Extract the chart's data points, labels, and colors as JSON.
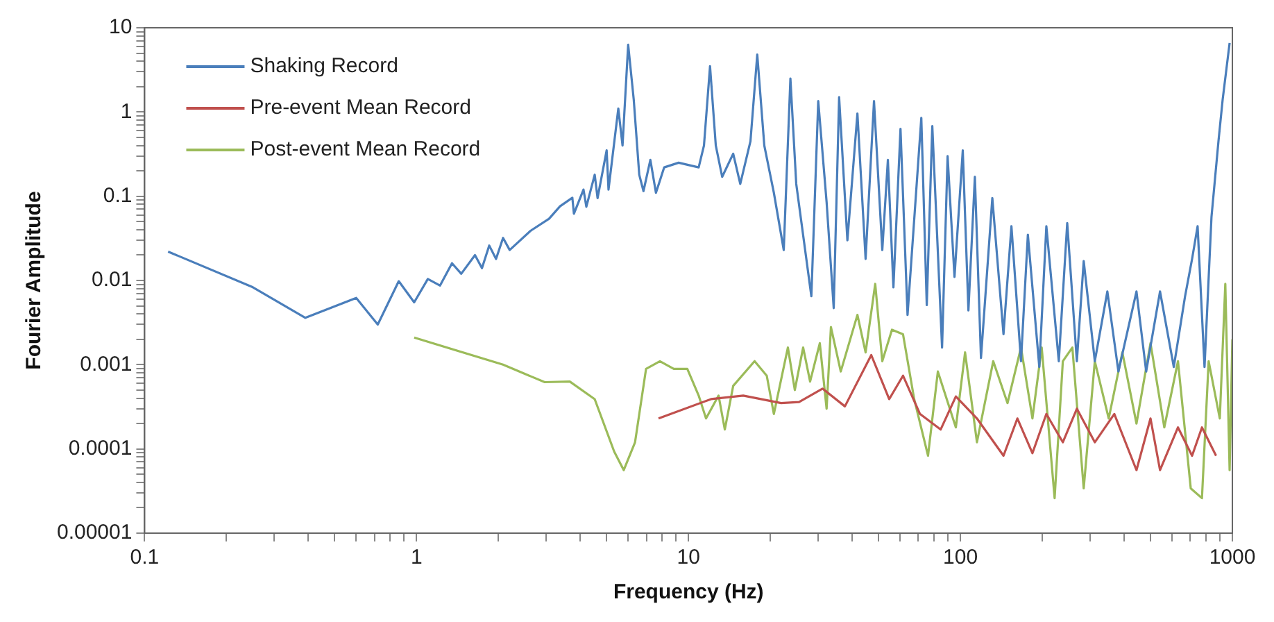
{
  "chart_data": {
    "type": "line",
    "xlabel": "Frequency (Hz)",
    "ylabel": "Fourier Amplitude",
    "log": "xy",
    "legend": "top left",
    "marker": "none",
    "line_style": "solid",
    "xlim": [
      0.1,
      1000
    ],
    "ylim": [
      1e-05,
      10
    ],
    "xticks": [
      0.1,
      {
        "value": 0.2,
        "label": null
      },
      {
        "value": 0.3,
        "label": null
      },
      {
        "value": 0.4,
        "label": null
      },
      {
        "value": 0.5,
        "label": null
      },
      {
        "value": 0.6,
        "label": null
      },
      {
        "value": 0.7,
        "label": null
      },
      {
        "value": 0.8,
        "label": null
      },
      {
        "value": 0.9,
        "label": null
      },
      1,
      {
        "value": 2,
        "label": null
      },
      {
        "value": 3,
        "label": null
      },
      {
        "value": 4,
        "label": null
      },
      {
        "value": 5,
        "label": null
      },
      {
        "value": 6,
        "label": null
      },
      {
        "value": 7,
        "label": null
      },
      {
        "value": 8,
        "label": null
      },
      {
        "value": 9,
        "label": null
      },
      10,
      {
        "value": 20,
        "label": null
      },
      {
        "value": 30,
        "label": null
      },
      {
        "value": 40,
        "label": null
      },
      {
        "value": 50,
        "label": null
      },
      {
        "value": 60,
        "label": null
      },
      {
        "value": 70,
        "label": null
      },
      {
        "value": 80,
        "label": null
      },
      {
        "value": 90,
        "label": null
      },
      100,
      {
        "value": 200,
        "label": null
      },
      {
        "value": 300,
        "label": null
      },
      {
        "value": 400,
        "label": null
      },
      {
        "value": 500,
        "label": null
      },
      {
        "value": 600,
        "label": null
      },
      {
        "value": 700,
        "label": null
      },
      {
        "value": 800,
        "label": null
      },
      {
        "value": 900,
        "label": null
      },
      1000
    ],
    "yticks": [
      {
        "value": 1e-05,
        "label": "0.00001"
      },
      {
        "value": 2e-05,
        "label": null
      },
      {
        "value": 3e-05,
        "label": null
      },
      {
        "value": 4e-05,
        "label": null
      },
      {
        "value": 5e-05,
        "label": null
      },
      {
        "value": 6e-05,
        "label": null
      },
      {
        "value": 7e-05,
        "label": null
      },
      {
        "value": 8e-05,
        "label": null
      },
      {
        "value": 9e-05,
        "label": null
      },
      0.0001,
      {
        "value": 0.0002,
        "label": null
      },
      {
        "value": 0.0003,
        "label": null
      },
      {
        "value": 0.0004,
        "label": null
      },
      {
        "value": 0.0005,
        "label": null
      },
      {
        "value": 0.0006,
        "label": null
      },
      {
        "value": 0.0007,
        "label": null
      },
      {
        "value": 0.0008,
        "label": null
      },
      {
        "value": 0.0009,
        "label": null
      },
      0.001,
      {
        "value": 0.002,
        "label": null
      },
      {
        "value": 0.003,
        "label": null
      },
      {
        "value": 0.004,
        "label": null
      },
      {
        "value": 0.005,
        "label": null
      },
      {
        "value": 0.006,
        "label": null
      },
      {
        "value": 0.007,
        "label": null
      },
      {
        "value": 0.008,
        "label": null
      },
      {
        "value": 0.009,
        "label": null
      },
      0.01,
      {
        "value": 0.02,
        "label": null
      },
      {
        "value": 0.03,
        "label": null
      },
      {
        "value": 0.04,
        "label": null
      },
      {
        "value": 0.05,
        "label": null
      },
      {
        "value": 0.06,
        "label": null
      },
      {
        "value": 0.07,
        "label": null
      },
      {
        "value": 0.08,
        "label": null
      },
      {
        "value": 0.09,
        "label": null
      },
      0.1,
      {
        "value": 0.2,
        "label": null
      },
      {
        "value": 0.3,
        "label": null
      },
      {
        "value": 0.4,
        "label": null
      },
      {
        "value": 0.5,
        "label": null
      },
      {
        "value": 0.6,
        "label": null
      },
      {
        "value": 0.7,
        "label": null
      },
      {
        "value": 0.8,
        "label": null
      },
      {
        "value": 0.9,
        "label": null
      },
      1,
      {
        "value": 2,
        "label": null
      },
      {
        "value": 3,
        "label": null
      },
      {
        "value": 4,
        "label": null
      },
      {
        "value": 5,
        "label": null
      },
      {
        "value": 6,
        "label": null
      },
      {
        "value": 7,
        "label": null
      },
      {
        "value": 8,
        "label": null
      },
      {
        "value": 9,
        "label": null
      },
      10
    ],
    "series": [
      {
        "name": "Shaking Record",
        "color": "#4a7ebb",
        "x": [
          0.122,
          0.25,
          0.39,
          0.6,
          0.72,
          0.86,
          0.98,
          1.1,
          1.22,
          1.35,
          1.46,
          1.64,
          1.74,
          1.85,
          1.96,
          2.08,
          2.2,
          2.63,
          3.07,
          3.37,
          3.74,
          3.79,
          4.11,
          4.21,
          4.52,
          4.63,
          5.0,
          5.08,
          5.52,
          5.72,
          6.0,
          6.29,
          6.59,
          6.83,
          7.24,
          7.59,
          8.14,
          9.2,
          10.9,
          11.4,
          12.0,
          12.6,
          13.3,
          14.6,
          15.5,
          16.9,
          17.9,
          19.0,
          20.6,
          22.4,
          23.7,
          24.9,
          28.3,
          30.0,
          32.2,
          34.2,
          35.8,
          38.4,
          41.8,
          44.8,
          48.1,
          51.6,
          54.1,
          56.7,
          60.2,
          63.9,
          71.8,
          75.2,
          78.8,
          85.6,
          89.7,
          95.1,
          102,
          107,
          113,
          119,
          131,
          144,
          154,
          167,
          177,
          195,
          207,
          230,
          247,
          268,
          284,
          312,
          347,
          381,
          444,
          482,
          542,
          609,
          670,
          711,
          745,
          790,
          838,
          889,
          921,
          977
        ],
        "values": [
          0.022,
          0.0083,
          0.0036,
          0.0062,
          0.003,
          0.0098,
          0.0055,
          0.0104,
          0.0087,
          0.016,
          0.012,
          0.02,
          0.014,
          0.026,
          0.018,
          0.032,
          0.023,
          0.039,
          0.054,
          0.076,
          0.096,
          0.062,
          0.12,
          0.075,
          0.18,
          0.095,
          0.35,
          0.12,
          1.1,
          0.4,
          6.3,
          1.4,
          0.18,
          0.115,
          0.27,
          0.11,
          0.22,
          0.25,
          0.22,
          0.4,
          3.5,
          0.4,
          0.17,
          0.32,
          0.14,
          0.45,
          4.8,
          0.4,
          0.11,
          0.023,
          2.5,
          0.14,
          0.0065,
          1.35,
          0.085,
          0.0047,
          1.5,
          0.03,
          0.96,
          0.018,
          1.35,
          0.023,
          0.27,
          0.0083,
          0.63,
          0.0039,
          0.85,
          0.0051,
          0.68,
          0.0016,
          0.3,
          0.011,
          0.35,
          0.0044,
          0.17,
          0.0012,
          0.095,
          0.0023,
          0.044,
          0.0011,
          0.035,
          0.00094,
          0.044,
          0.0011,
          0.048,
          0.0011,
          0.017,
          0.0011,
          0.0074,
          0.00083,
          0.0074,
          0.00083,
          0.0074,
          0.00094,
          0.0065,
          0.018,
          0.044,
          0.00094,
          0.057,
          0.45,
          1.4,
          6.6
        ]
      },
      {
        "name": "Pre-event Mean Record",
        "color": "#c0504d",
        "x": [
          7.76,
          12.1,
          15.9,
          21.9,
          25.5,
          31.1,
          37.6,
          47.0,
          54.7,
          61.5,
          71.0,
          84.6,
          96.2,
          115,
          144,
          162,
          184,
          207,
          238,
          268,
          312,
          368,
          444,
          500,
          542,
          631,
          711,
          773,
          871
        ],
        "values": [
          0.00023,
          0.00039,
          0.00043,
          0.00035,
          0.00036,
          0.00052,
          0.00032,
          0.0013,
          0.00039,
          0.00074,
          0.00026,
          0.00017,
          0.00042,
          0.00023,
          8.3e-05,
          0.00023,
          8.9e-05,
          0.00026,
          0.00012,
          0.0003,
          0.00012,
          0.00026,
          5.6e-05,
          0.00023,
          5.6e-05,
          0.00018,
          8.3e-05,
          0.00018,
          8.3e-05
        ]
      },
      {
        "name": "Post-event Mean Record",
        "color": "#9bbb59",
        "x": [
          0.98,
          2.08,
          2.96,
          3.66,
          4.52,
          5.33,
          5.78,
          6.36,
          6.98,
          7.85,
          8.83,
          9.9,
          10.9,
          11.6,
          12.9,
          13.6,
          14.6,
          17.5,
          19.4,
          20.6,
          23.2,
          24.6,
          26.4,
          28.0,
          30.4,
          32.2,
          33.4,
          36.3,
          41.8,
          44.8,
          48.6,
          51.6,
          56.0,
          61.5,
          67.6,
          76.0,
          82.6,
          96.2,
          104,
          115,
          132,
          149,
          167,
          184,
          199,
          222,
          238,
          258,
          284,
          312,
          351,
          394,
          444,
          500,
          562,
          631,
          703,
          773,
          818,
          899,
          942,
          977,
          1000
        ],
        "values": [
          0.0021,
          0.001,
          0.00062,
          0.00063,
          0.00039,
          9.3e-05,
          5.6e-05,
          0.00012,
          0.00089,
          0.0011,
          0.00089,
          0.00089,
          0.00043,
          0.00023,
          0.00043,
          0.00017,
          0.00056,
          0.0011,
          0.00074,
          0.00026,
          0.0016,
          0.0005,
          0.0016,
          0.00063,
          0.0018,
          0.0003,
          0.0028,
          0.00083,
          0.0039,
          0.0014,
          0.0091,
          0.0011,
          0.0026,
          0.0023,
          0.00039,
          8.3e-05,
          0.00083,
          0.00018,
          0.0014,
          0.00012,
          0.0011,
          0.00035,
          0.0016,
          0.00023,
          0.0016,
          2.6e-05,
          0.0011,
          0.0016,
          3.4e-05,
          0.0011,
          0.00023,
          0.0014,
          0.0002,
          0.0018,
          0.00018,
          0.0011,
          3.4e-05,
          2.6e-05,
          0.0011,
          0.00023,
          0.0091,
          5.6e-05,
          0.002
        ]
      }
    ]
  }
}
